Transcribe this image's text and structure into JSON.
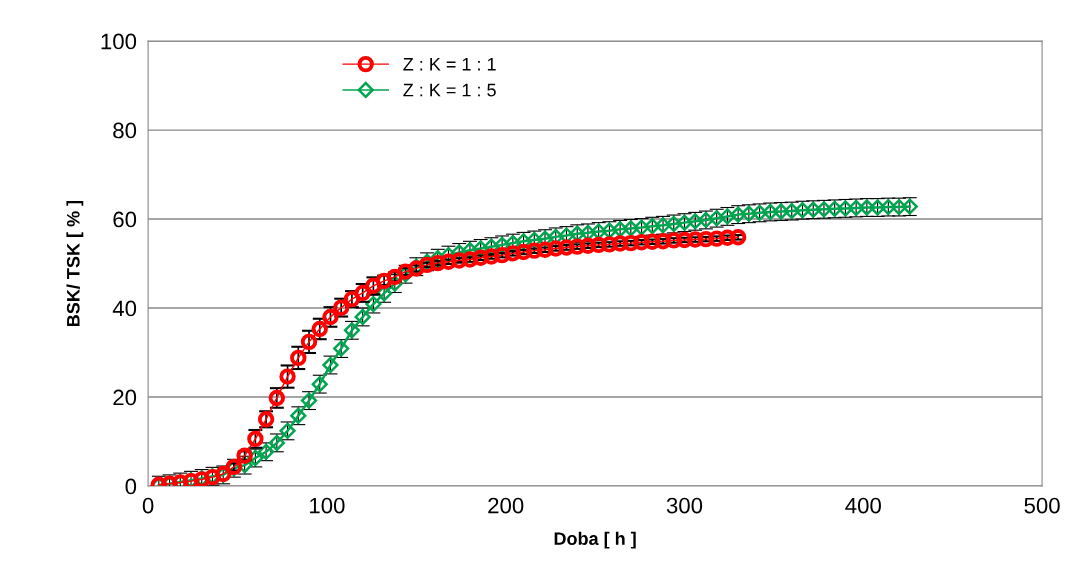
{
  "chart_data": {
    "type": "line",
    "xlabel": "Doba [ h ]",
    "ylabel": "BSK/ TSK [ % ]",
    "xlim": [
      0,
      500
    ],
    "xticks": [
      0,
      100,
      200,
      300,
      400,
      500
    ],
    "ylim": [
      0,
      100
    ],
    "yticks": [
      0,
      20,
      40,
      60,
      80,
      100
    ],
    "grid": "y",
    "legend": "top left",
    "series": [
      {
        "name": "Z : K = 1 : 1",
        "color": "#ff0000",
        "marker": "circle",
        "x": [
          6,
          12,
          18,
          24,
          30,
          36,
          42,
          48,
          54,
          60,
          66,
          72,
          78,
          84,
          90,
          96,
          102,
          108,
          114,
          120,
          126,
          132,
          138,
          144,
          150,
          156,
          162,
          168,
          174,
          180,
          186,
          192,
          198,
          204,
          210,
          216,
          222,
          228,
          234,
          240,
          246,
          252,
          258,
          264,
          270,
          276,
          282,
          288,
          294,
          300,
          306,
          312,
          318,
          324,
          330
        ],
        "values": [
          0.3,
          0.5,
          0.8,
          1.1,
          1.5,
          2.0,
          2.7,
          4.3,
          6.8,
          10.6,
          15.0,
          19.8,
          24.6,
          28.8,
          32.4,
          35.3,
          38.0,
          40.1,
          42.0,
          43.4,
          45.0,
          46.1,
          47.0,
          48.2,
          48.9,
          49.7,
          50.1,
          50.4,
          50.7,
          50.9,
          51.3,
          51.6,
          51.9,
          52.3,
          52.6,
          52.9,
          53.1,
          53.4,
          53.6,
          53.8,
          54.0,
          54.2,
          54.3,
          54.5,
          54.6,
          54.8,
          54.9,
          55.0,
          55.2,
          55.3,
          55.4,
          55.5,
          55.6,
          55.8,
          55.9
        ],
        "errors": [
          null,
          null,
          null,
          null,
          null,
          null,
          null,
          0.8,
          1,
          2,
          1.8,
          2.2,
          2.5,
          2.5,
          2.5,
          2.3,
          2.2,
          2,
          1.8,
          2,
          1.9,
          1.2,
          1,
          0.8,
          0.7,
          0.5,
          0.5,
          0.5,
          0.5,
          0.5,
          0.5,
          0.5,
          0.5,
          0.5,
          0.5,
          0.5,
          0.5,
          0.5,
          0.5,
          0.5,
          0.5,
          0.5,
          0.5,
          0.5,
          0.5,
          0.5,
          0.5,
          0.5,
          0.5,
          0.5,
          0.5,
          0.5,
          0.5,
          0.5,
          0.5
        ]
      },
      {
        "name": "Z : K = 1 : 5",
        "color": "#00a550",
        "marker": "diamond",
        "x": [
          6,
          12,
          18,
          24,
          30,
          36,
          42,
          48,
          54,
          60,
          66,
          72,
          78,
          84,
          90,
          96,
          102,
          108,
          114,
          120,
          126,
          132,
          138,
          144,
          150,
          156,
          162,
          168,
          174,
          180,
          186,
          192,
          198,
          204,
          210,
          216,
          222,
          228,
          234,
          240,
          246,
          252,
          258,
          264,
          270,
          276,
          282,
          288,
          294,
          300,
          306,
          312,
          318,
          324,
          330,
          336,
          342,
          348,
          354,
          360,
          366,
          372,
          378,
          384,
          390,
          396,
          402,
          408,
          414,
          420,
          426
        ],
        "values": [
          0.2,
          0.5,
          0.9,
          1.3,
          1.7,
          2.2,
          2.5,
          4.0,
          4.7,
          6.3,
          7.7,
          9.7,
          12.4,
          15.8,
          19.2,
          22.9,
          27.2,
          30.9,
          35.0,
          38.0,
          40.9,
          43.3,
          45.5,
          47.6,
          49.3,
          50.4,
          51.2,
          51.9,
          52.5,
          53.0,
          53.4,
          53.8,
          54.2,
          54.6,
          55.0,
          55.3,
          55.6,
          56.0,
          56.3,
          56.7,
          56.9,
          57.2,
          57.4,
          57.7,
          57.9,
          58.1,
          58.4,
          58.6,
          58.9,
          59.2,
          59.5,
          59.8,
          60.2,
          60.6,
          61.0,
          61.2,
          61.4,
          61.6,
          61.7,
          61.8,
          62.0,
          62.1,
          62.2,
          62.3,
          62.4,
          62.5,
          62.6,
          62.6,
          62.7,
          62.7,
          62.8
        ],
        "errors": [
          2,
          2,
          2,
          2,
          2,
          2,
          2,
          2,
          2,
          2,
          2,
          2,
          2,
          2,
          2,
          2,
          2,
          2,
          2,
          2,
          2,
          2,
          2,
          2,
          2,
          2,
          2,
          2,
          2,
          2,
          2,
          2,
          2,
          2,
          2,
          2,
          2,
          2,
          2,
          2,
          2,
          2,
          2,
          2,
          2,
          2,
          2,
          2,
          2,
          2,
          2,
          2,
          2,
          2,
          2,
          2,
          2,
          2,
          2,
          2,
          2,
          2,
          2,
          2,
          2,
          2,
          2,
          2,
          2,
          2,
          2
        ]
      }
    ]
  }
}
